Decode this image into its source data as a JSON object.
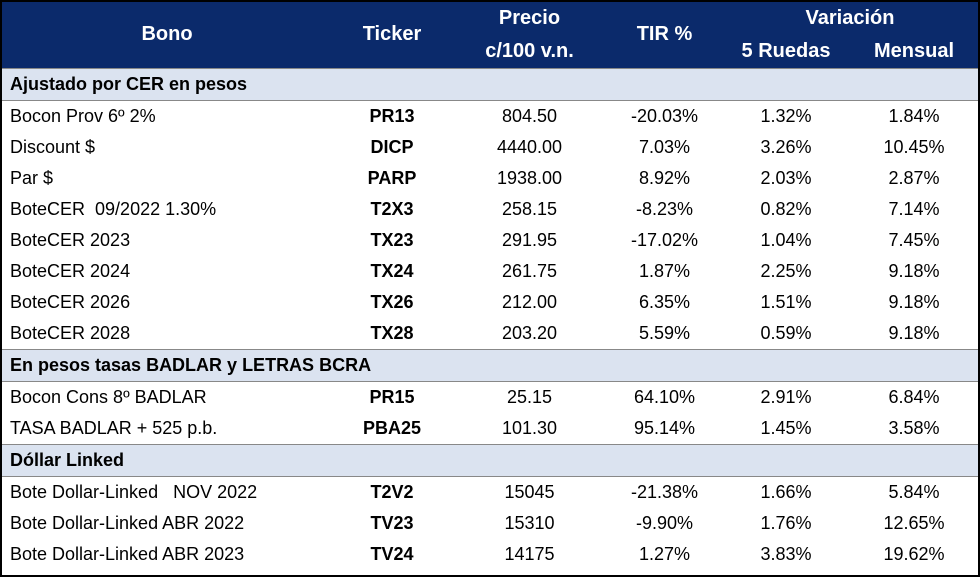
{
  "header": {
    "bono": "Bono",
    "ticker": "Ticker",
    "precio": [
      "Precio",
      "c/100 v.n."
    ],
    "tir": "TIR %",
    "variacion": "Variación",
    "ruedas": "5 Ruedas",
    "mensual": "Mensual"
  },
  "sections": [
    {
      "title": "Ajustado por CER en pesos",
      "rows": [
        [
          "Bocon Prov 6º 2%",
          "PR13",
          "804.50",
          "-20.03%",
          "1.32%",
          "1.84%"
        ],
        [
          "Discount $",
          "DICP",
          "4440.00",
          "7.03%",
          "3.26%",
          "10.45%"
        ],
        [
          "Par $",
          "PARP",
          "1938.00",
          "8.92%",
          "2.03%",
          "2.87%"
        ],
        [
          "BoteCER  09/2022 1.30%",
          "T2X3",
          "258.15",
          "-8.23%",
          "0.82%",
          "7.14%"
        ],
        [
          "BoteCER 2023",
          "TX23",
          "291.95",
          "-17.02%",
          "1.04%",
          "7.45%"
        ],
        [
          "BoteCER 2024",
          "TX24",
          "261.75",
          "1.87%",
          "2.25%",
          "9.18%"
        ],
        [
          "BoteCER 2026",
          "TX26",
          "212.00",
          "6.35%",
          "1.51%",
          "9.18%"
        ],
        [
          "BoteCER 2028",
          "TX28",
          "203.20",
          "5.59%",
          "0.59%",
          "9.18%"
        ]
      ]
    },
    {
      "title": "En pesos tasas BADLAR y LETRAS BCRA",
      "rows": [
        [
          "Bocon Cons 8º BADLAR",
          "PR15",
          "25.15",
          "64.10%",
          "2.91%",
          "6.84%"
        ],
        [
          "TASA BADLAR + 525 p.b.",
          "PBA25",
          "101.30",
          "95.14%",
          "1.45%",
          "3.58%"
        ]
      ]
    },
    {
      "title": "Dóllar Linked",
      "rows": [
        [
          "Bote Dollar-Linked   NOV 2022",
          "T2V2",
          "15045",
          "-21.38%",
          "1.66%",
          "5.84%"
        ],
        [
          "Bote Dollar-Linked ABR 2022",
          "TV23",
          "15310",
          "-9.90%",
          "1.76%",
          "12.65%"
        ],
        [
          "Bote Dollar-Linked ABR 2023",
          "TV24",
          "14175",
          "1.27%",
          "3.83%",
          "19.62%"
        ]
      ]
    }
  ]
}
